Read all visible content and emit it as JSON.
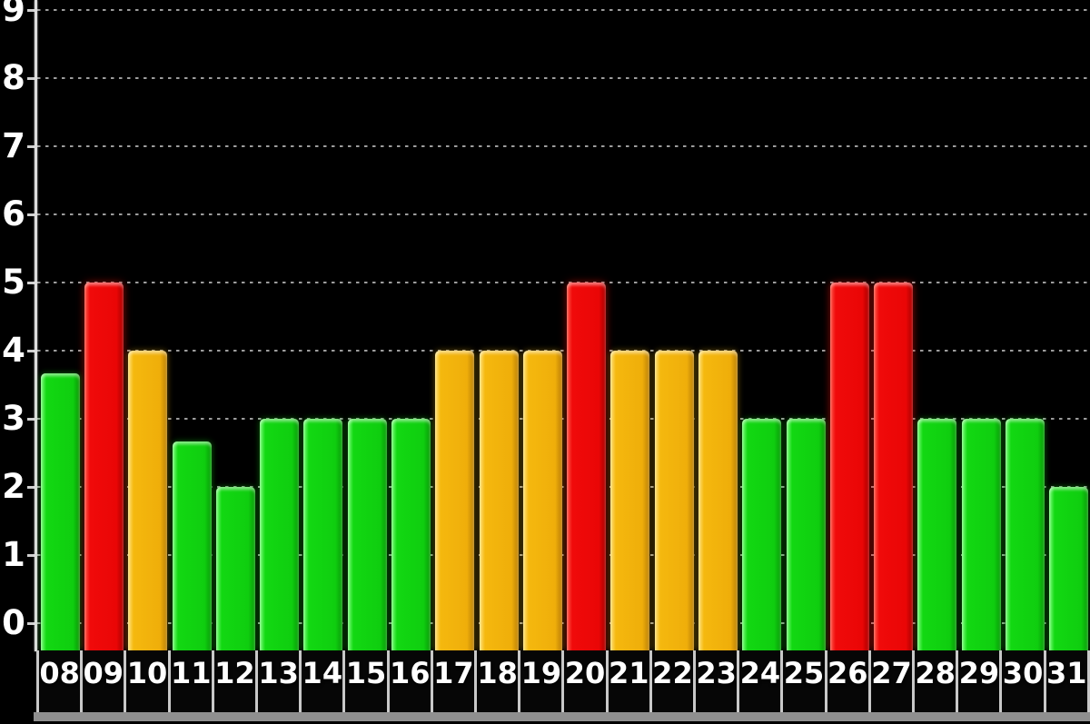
{
  "chart_data": {
    "type": "bar",
    "title": "",
    "xlabel": "",
    "ylabel": "",
    "categories": [
      "08",
      "09",
      "10",
      "11",
      "12",
      "13",
      "14",
      "15",
      "16",
      "17",
      "18",
      "19",
      "20",
      "21",
      "22",
      "23",
      "24",
      "25",
      "26",
      "27",
      "28",
      "29",
      "30",
      "31"
    ],
    "values": [
      3.67,
      5,
      4,
      2.67,
      2,
      3,
      3,
      3,
      3,
      4,
      4,
      4,
      5,
      4,
      4,
      4,
      3,
      3,
      5,
      5,
      3,
      3,
      3,
      2
    ],
    "bar_levels": [
      "green",
      "red",
      "orange",
      "green",
      "green",
      "green",
      "green",
      "green",
      "green",
      "orange",
      "orange",
      "orange",
      "red",
      "orange",
      "orange",
      "orange",
      "green",
      "green",
      "red",
      "red",
      "green",
      "green",
      "green",
      "green"
    ],
    "y_ticks": [
      0,
      1,
      2,
      3,
      4,
      5,
      6,
      7,
      8,
      9
    ],
    "ylim": [
      0,
      9
    ],
    "grid": "horizontal-dotted",
    "legend": "none"
  },
  "palette": {
    "green": "#12d812",
    "orange": "#f5b80e",
    "red": "#f00a0a",
    "background": "#000000",
    "axis_line": "#dedede",
    "grid_line": "#c3c3c3",
    "label_text": "#ffffff",
    "cell_border": "#c8c8c8",
    "footer_strip": "#8f8f8f"
  }
}
